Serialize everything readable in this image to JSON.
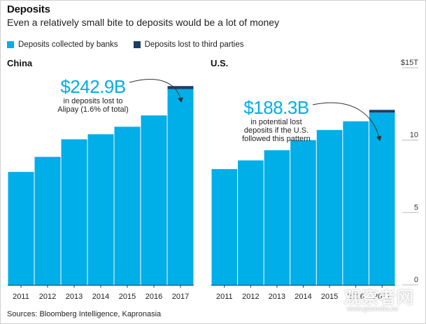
{
  "header": {
    "title": "Deposits",
    "subtitle": "Even a relatively small bite to deposits would be a lot of money"
  },
  "legend": {
    "items": [
      {
        "label": "Deposits collected by banks",
        "color": "#00aee8"
      },
      {
        "label": "Deposits lost to third parties",
        "color": "#1b3f63"
      }
    ]
  },
  "footer": {
    "source": "Sources: Bloomberg Intelligence, Kapronasia"
  },
  "watermark": {
    "text": "观察者网",
    "subtext": "www.guancha.cn"
  },
  "colors": {
    "bank": "#00aee8",
    "lost": "#1b3f63",
    "axis": "#333333",
    "grid": "#bbbbbb"
  },
  "chart_data": [
    {
      "type": "bar",
      "panel": "China",
      "title": "China",
      "categories": [
        "2011",
        "2012",
        "2013",
        "2014",
        "2015",
        "2016",
        "2017"
      ],
      "series": [
        {
          "name": "Deposits collected by banks",
          "values": [
            9.0,
            10.2,
            11.6,
            12.0,
            12.6,
            13.5,
            15.6
          ]
        },
        {
          "name": "Deposits lost to third parties",
          "values": [
            0,
            0,
            0,
            0,
            0,
            0,
            0.24
          ]
        }
      ],
      "annotation": {
        "value": "$242.9B",
        "text": "in deposits lost to Alipay (1.6% of total)",
        "lines": [
          "in deposits lost to",
          "Alipay (1.6% of total)"
        ]
      },
      "ylim": [
        0,
        17.3
      ]
    },
    {
      "type": "bar",
      "panel": "U.S.",
      "title": "U.S.",
      "categories": [
        "2011",
        "2012",
        "2013",
        "2014",
        "2015",
        "2016",
        "2017"
      ],
      "series": [
        {
          "name": "Deposits collected by banks",
          "values": [
            8.0,
            8.6,
            9.3,
            10.0,
            10.7,
            11.3,
            11.9
          ]
        },
        {
          "name": "Deposits lost to third parties",
          "values": [
            0,
            0,
            0,
            0,
            0,
            0,
            0.19
          ]
        }
      ],
      "annotation": {
        "value": "$188.3B",
        "text": "in potential lost deposits if the U.S. followed this pattern",
        "lines": [
          "in potential lost",
          "deposits if the U.S.",
          "followed this pattern"
        ]
      },
      "yticks": [
        0,
        5,
        10,
        15
      ],
      "ytick_labels": [
        "0",
        "5",
        "10",
        "$15T"
      ],
      "ylim": [
        0,
        15
      ]
    }
  ]
}
